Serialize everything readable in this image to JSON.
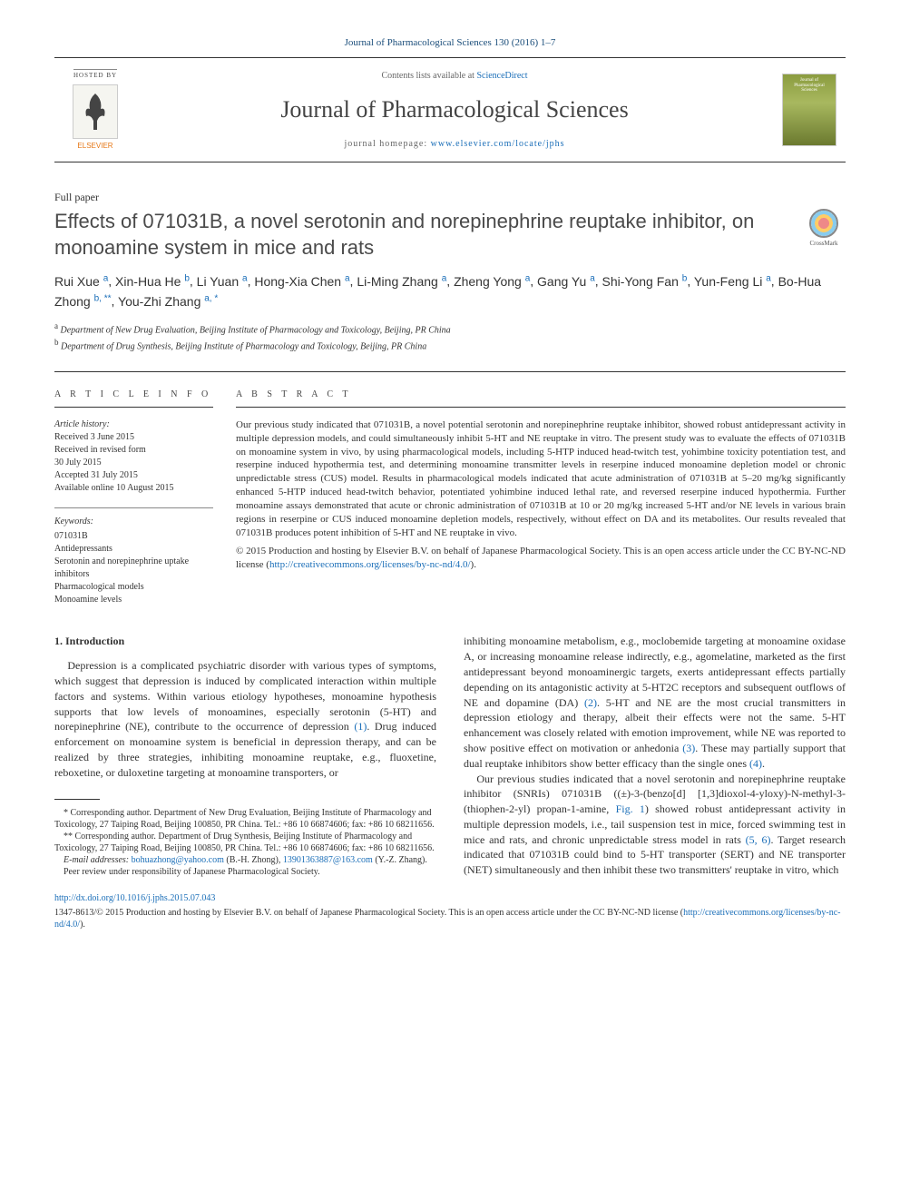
{
  "citation": "Journal of Pharmacological Sciences 130 (2016) 1–7",
  "header": {
    "hosted_by": "HOSTED BY",
    "elsevier": "ELSEVIER",
    "contents_prefix": "Contents lists available at ",
    "sciencedirect": "ScienceDirect",
    "journal_name": "Journal of Pharmacological Sciences",
    "homepage_prefix": "journal homepage: ",
    "homepage_url": "www.elsevier.com/locate/jphs",
    "cover_text": "Journal of Pharmacological Sciences"
  },
  "article_type": "Full paper",
  "title": "Effects of 071031B, a novel serotonin and norepinephrine reuptake inhibitor, on monoamine system in mice and rats",
  "crossmark": "CrossMark",
  "authors": [
    {
      "name": "Rui Xue",
      "aff": "a"
    },
    {
      "name": "Xin-Hua He",
      "aff": "b"
    },
    {
      "name": "Li Yuan",
      "aff": "a"
    },
    {
      "name": "Hong-Xia Chen",
      "aff": "a"
    },
    {
      "name": "Li-Ming Zhang",
      "aff": "a"
    },
    {
      "name": "Zheng Yong",
      "aff": "a"
    },
    {
      "name": "Gang Yu",
      "aff": "a"
    },
    {
      "name": "Shi-Yong Fan",
      "aff": "b"
    },
    {
      "name": "Yun-Feng Li",
      "aff": "a"
    },
    {
      "name": "Bo-Hua Zhong",
      "aff": "b, **"
    },
    {
      "name": "You-Zhi Zhang",
      "aff": "a, *"
    }
  ],
  "affiliations": {
    "a": "Department of New Drug Evaluation, Beijing Institute of Pharmacology and Toxicology, Beijing, PR China",
    "b": "Department of Drug Synthesis, Beijing Institute of Pharmacology and Toxicology, Beijing, PR China"
  },
  "info": {
    "heading": "A R T I C L E   I N F O",
    "history_label": "Article history:",
    "history": [
      "Received 3 June 2015",
      "Received in revised form",
      "30 July 2015",
      "Accepted 31 July 2015",
      "Available online 10 August 2015"
    ],
    "keywords_label": "Keywords:",
    "keywords": [
      "071031B",
      "Antidepressants",
      "Serotonin and norepinephrine uptake inhibitors",
      "Pharmacological models",
      "Monoamine levels"
    ]
  },
  "abstract": {
    "heading": "A B S T R A C T",
    "text": "Our previous study indicated that 071031B, a novel potential serotonin and norepinephrine reuptake inhibitor, showed robust antidepressant activity in multiple depression models, and could simultaneously inhibit 5-HT and NE reuptake in vitro. The present study was to evaluate the effects of 071031B on monoamine system in vivo, by using pharmacological models, including 5-HTP induced head-twitch test, yohimbine toxicity potentiation test, and reserpine induced hypothermia test, and determining monoamine transmitter levels in reserpine induced monoamine depletion model or chronic unpredictable stress (CUS) model. Results in pharmacological models indicated that acute administration of 071031B at 5–20 mg/kg significantly enhanced 5-HTP induced head-twitch behavior, potentiated yohimbine induced lethal rate, and reversed reserpine induced hypothermia. Further monoamine assays demonstrated that acute or chronic administration of 071031B at 10 or 20 mg/kg increased 5-HT and/or NE levels in various brain regions in reserpine or CUS induced monoamine depletion models, respectively, without effect on DA and its metabolites. Our results revealed that 071031B produces potent inhibition of 5-HT and NE reuptake in vivo.",
    "copyright": "© 2015 Production and hosting by Elsevier B.V. on behalf of Japanese Pharmacological Society. This is an open access article under the CC BY-NC-ND license (",
    "license_url": "http://creativecommons.org/licenses/by-nc-nd/4.0/",
    "copyright_close": ")."
  },
  "body": {
    "section1_heading": "1. Introduction",
    "col1_p1": "Depression is a complicated psychiatric disorder with various types of symptoms, which suggest that depression is induced by complicated interaction within multiple factors and systems. Within various etiology hypotheses, monoamine hypothesis supports that low levels of monoamines, especially serotonin (5-HT) and norepinephrine (NE), contribute to the occurrence of depression ",
    "ref1": "(1)",
    "col1_p1b": ". Drug induced enforcement on monoamine system is beneficial in depression therapy, and can be realized by three strategies, inhibiting monoamine reuptake, e.g., fluoxetine, reboxetine, or duloxetine targeting at monoamine transporters, or",
    "col2_p1": "inhibiting monoamine metabolism, e.g., moclobemide targeting at monoamine oxidase A, or increasing monoamine release indirectly, e.g., agomelatine, marketed as the first antidepressant beyond monoaminergic targets, exerts antidepressant effects partially depending on its antagonistic activity at 5-HT2C receptors and subsequent outflows of NE and dopamine (DA) ",
    "ref2": "(2)",
    "col2_p1b": ". 5-HT and NE are the most crucial transmitters in depression etiology and therapy, albeit their effects were not the same. 5-HT enhancement was closely related with emotion improvement, while NE was reported to show positive effect on motivation or anhedonia ",
    "ref3": "(3)",
    "col2_p1c": ". These may partially support that dual reuptake inhibitors show better efficacy than the single ones ",
    "ref4": "(4)",
    "col2_p1d": ".",
    "col2_p2a": "Our previous studies indicated that a novel serotonin and norepinephrine reuptake inhibitor (SNRIs) 071031B ((±)-3-(benzo[d] [1,3]dioxol-4-yloxy)-N-methyl-3-(thiophen-2-yl) propan-1-amine, ",
    "fig1": "Fig. 1",
    "col2_p2b": ") showed robust antidepressant activity in multiple depression models, i.e., tail suspension test in mice, forced swimming test in mice and rats, and chronic unpredictable stress model in rats ",
    "ref56": "(5, 6)",
    "col2_p2c": ". Target research indicated that 071031B could bind to 5-HT transporter (SERT) and NE transporter (NET) simultaneously and then inhibit these two transmitters' reuptake in vitro, which"
  },
  "footnotes": {
    "corr1": "* Corresponding author. Department of New Drug Evaluation, Beijing Institute of Pharmacology and Toxicology, 27 Taiping Road, Beijing 100850, PR China. Tel.: +86 10 66874606; fax: +86 10 68211656.",
    "corr2": "** Corresponding author. Department of Drug Synthesis, Beijing Institute of Pharmacology and Toxicology, 27 Taiping Road, Beijing 100850, PR China. Tel.: +86 10 66874606; fax: +86 10 68211656.",
    "email_label": "E-mail addresses: ",
    "email1": "bohuazhong@yahoo.com",
    "email1_name": " (B.-H. Zhong), ",
    "email2": "13901363887@163.com",
    "email2_name": " (Y.-Z. Zhang).",
    "peer": "Peer review under responsibility of Japanese Pharmacological Society."
  },
  "doi": "http://dx.doi.org/10.1016/j.jphs.2015.07.043",
  "bottom_copyright": "1347-8613/© 2015 Production and hosting by Elsevier B.V. on behalf of Japanese Pharmacological Society. This is an open access article under the CC BY-NC-ND license (",
  "bottom_license": "http://creativecommons.org/licenses/by-nc-nd/4.0/",
  "bottom_close": ").",
  "colors": {
    "link": "#1a6eb8",
    "text": "#333333",
    "elsevier_orange": "#e67817",
    "cover_green": "#8b9c3f"
  }
}
